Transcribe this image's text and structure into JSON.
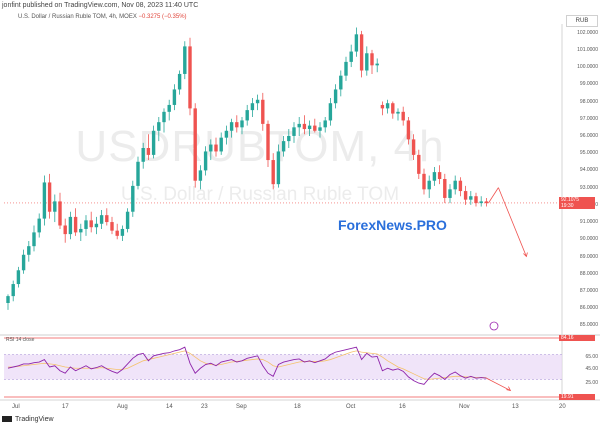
{
  "header": {
    "publisher_text": "jonfint published on TradingView.com, Nov 08, 2023 11:40 UTC"
  },
  "symbol_title": {
    "text": "U.S. Dollar / Russian Ruble TOM, 4h, MOEX",
    "change": "−0.3275 (−0.35%)"
  },
  "watermark": {
    "symbol": "USDRUBTOM, 4h",
    "name": "U.S. Dollar / Russian Ruble TOM"
  },
  "brand": "ForexNews.PRO",
  "footer": {
    "logo_text": "TradingView"
  },
  "currency_label": "RUB",
  "price_badge": {
    "price": "92.1075",
    "timer": "19:30",
    "color": "#ef5350"
  },
  "rsi": {
    "label": "RSI 14 close",
    "upper_badge": "84.16",
    "lower_badge": "19.91",
    "ticks": [
      "65.00",
      "45.00",
      "25.00"
    ]
  },
  "colors": {
    "up": "#26a69a",
    "down": "#ef5350",
    "rsi_line": "#8e24aa",
    "rsi_ma": "#f5c26b",
    "rsi_band": "#e9d8f7",
    "forecast": "#ef5350",
    "brand": "#2a6fdb"
  },
  "chart_data": {
    "type": "candlestick",
    "title": "U.S. Dollar / Russian Ruble TOM, 4h, MOEX",
    "y_ticks": [
      "102.0000",
      "101.0000",
      "100.0000",
      "99.0000",
      "98.0000",
      "97.0000",
      "96.0000",
      "95.0000",
      "94.0000",
      "93.0000",
      "92.0000",
      "91.0000",
      "90.0000",
      "89.0000",
      "88.0000",
      "87.0000",
      "86.0000",
      "85.0000"
    ],
    "ylim": [
      84.5,
      102.5
    ],
    "x_ticks": [
      "Jul",
      "17",
      "Aug",
      "14",
      "23",
      "Sep",
      "18",
      "Oct",
      "16",
      "Nov",
      "13",
      "20"
    ],
    "current_price": 92.1075,
    "candles": [
      [
        86.3,
        86.8,
        85.9,
        86.7
      ],
      [
        86.7,
        87.6,
        86.4,
        87.4
      ],
      [
        87.4,
        88.4,
        87.2,
        88.2
      ],
      [
        88.2,
        89.4,
        88.0,
        89.1
      ],
      [
        89.1,
        89.9,
        88.7,
        89.6
      ],
      [
        89.6,
        90.8,
        89.3,
        90.4
      ],
      [
        90.4,
        91.5,
        90.1,
        91.2
      ],
      [
        91.2,
        93.7,
        90.8,
        93.3
      ],
      [
        93.3,
        93.8,
        91.2,
        91.6
      ],
      [
        91.6,
        92.6,
        91.0,
        92.2
      ],
      [
        92.2,
        92.7,
        90.6,
        90.8
      ],
      [
        90.8,
        91.2,
        89.8,
        90.3
      ],
      [
        90.3,
        91.6,
        90.0,
        91.3
      ],
      [
        91.3,
        91.8,
        90.2,
        90.4
      ],
      [
        90.4,
        90.9,
        89.9,
        90.6
      ],
      [
        90.6,
        91.4,
        90.2,
        91.1
      ],
      [
        91.1,
        91.6,
        90.4,
        90.7
      ],
      [
        90.7,
        91.3,
        90.3,
        90.9
      ],
      [
        90.9,
        91.7,
        90.6,
        91.4
      ],
      [
        91.4,
        91.8,
        90.8,
        91.0
      ],
      [
        91.0,
        91.3,
        90.3,
        90.5
      ],
      [
        90.5,
        90.9,
        90.0,
        90.2
      ],
      [
        90.2,
        90.8,
        89.9,
        90.6
      ],
      [
        90.6,
        91.8,
        90.4,
        91.6
      ],
      [
        91.6,
        93.4,
        91.3,
        93.1
      ],
      [
        93.1,
        94.8,
        92.9,
        94.5
      ],
      [
        94.5,
        95.6,
        94.1,
        95.3
      ],
      [
        95.3,
        96.1,
        94.6,
        94.9
      ],
      [
        94.9,
        96.6,
        94.7,
        96.3
      ],
      [
        96.3,
        97.1,
        95.7,
        96.8
      ],
      [
        96.8,
        97.6,
        96.2,
        97.4
      ],
      [
        97.4,
        98.1,
        96.9,
        97.8
      ],
      [
        97.8,
        99.0,
        97.5,
        98.7
      ],
      [
        98.7,
        99.8,
        98.4,
        99.6
      ],
      [
        99.6,
        101.5,
        99.3,
        101.2
      ],
      [
        101.2,
        101.7,
        97.2,
        97.6
      ],
      [
        97.6,
        97.9,
        93.0,
        93.4
      ],
      [
        93.4,
        94.3,
        92.9,
        94.0
      ],
      [
        94.0,
        95.4,
        93.7,
        95.1
      ],
      [
        95.1,
        95.8,
        94.6,
        95.5
      ],
      [
        95.5,
        95.9,
        94.8,
        95.1
      ],
      [
        95.1,
        96.2,
        94.9,
        95.9
      ],
      [
        95.9,
        96.6,
        95.5,
        96.3
      ],
      [
        96.3,
        97.0,
        95.9,
        96.8
      ],
      [
        96.8,
        97.2,
        96.2,
        96.5
      ],
      [
        96.5,
        97.1,
        96.1,
        96.9
      ],
      [
        96.9,
        97.8,
        96.6,
        97.5
      ],
      [
        97.5,
        98.2,
        97.1,
        97.9
      ],
      [
        97.9,
        98.4,
        97.5,
        98.1
      ],
      [
        98.1,
        98.5,
        96.3,
        96.7
      ],
      [
        96.7,
        96.9,
        94.2,
        94.6
      ],
      [
        94.6,
        95.0,
        92.9,
        93.2
      ],
      [
        93.2,
        95.5,
        93.0,
        95.1
      ],
      [
        95.1,
        96.0,
        94.8,
        95.7
      ],
      [
        95.7,
        96.4,
        95.3,
        96.0
      ],
      [
        96.0,
        96.8,
        95.6,
        96.5
      ],
      [
        96.5,
        97.1,
        96.0,
        96.7
      ],
      [
        96.7,
        97.2,
        96.1,
        96.4
      ],
      [
        96.4,
        96.9,
        96.0,
        96.6
      ],
      [
        96.6,
        97.0,
        96.2,
        96.3
      ],
      [
        96.3,
        96.8,
        95.9,
        96.5
      ],
      [
        96.5,
        97.1,
        96.2,
        96.9
      ],
      [
        96.9,
        98.2,
        96.6,
        97.9
      ],
      [
        97.9,
        99.0,
        97.6,
        98.7
      ],
      [
        98.7,
        99.8,
        98.3,
        99.5
      ],
      [
        99.5,
        100.6,
        99.2,
        100.3
      ],
      [
        100.3,
        101.3,
        100.0,
        100.9
      ],
      [
        100.9,
        102.3,
        100.6,
        101.9
      ],
      [
        101.9,
        102.1,
        99.4,
        99.8
      ],
      [
        99.8,
        101.2,
        99.5,
        100.8
      ],
      [
        100.8,
        101.0,
        99.6,
        100.1
      ],
      [
        100.1,
        100.5,
        99.7,
        100.2
      ],
      [
        97.8,
        98.0,
        97.2,
        97.6
      ],
      [
        97.6,
        98.1,
        97.3,
        97.9
      ],
      [
        97.9,
        98.0,
        97.0,
        97.3
      ],
      [
        97.3,
        97.6,
        96.9,
        97.4
      ],
      [
        97.4,
        97.7,
        96.6,
        96.9
      ],
      [
        96.9,
        97.1,
        95.5,
        95.8
      ],
      [
        95.8,
        96.1,
        94.6,
        94.9
      ],
      [
        94.9,
        95.2,
        93.5,
        93.8
      ],
      [
        93.8,
        94.1,
        92.6,
        92.9
      ],
      [
        92.9,
        93.7,
        92.4,
        93.4
      ],
      [
        93.4,
        94.2,
        93.1,
        93.9
      ],
      [
        93.9,
        94.3,
        93.2,
        93.5
      ],
      [
        93.5,
        93.8,
        92.1,
        92.4
      ],
      [
        92.4,
        93.2,
        92.1,
        92.9
      ],
      [
        92.9,
        93.7,
        92.6,
        93.4
      ],
      [
        93.4,
        93.6,
        92.5,
        92.8
      ],
      [
        92.8,
        93.1,
        92.0,
        92.3
      ],
      [
        92.3,
        92.8,
        92.0,
        92.5
      ],
      [
        92.5,
        92.7,
        91.9,
        92.1
      ],
      [
        92.1,
        92.5,
        91.9,
        92.2
      ],
      [
        92.2,
        92.4,
        91.9,
        92.1
      ]
    ],
    "forecast_path": [
      [
        93.0,
        0
      ],
      [
        89.0,
        1
      ]
    ],
    "rsi_values": [
      48,
      50,
      52,
      55,
      55,
      57,
      58,
      62,
      50,
      52,
      44,
      40,
      50,
      44,
      48,
      52,
      47,
      49,
      52,
      47,
      43,
      40,
      46,
      55,
      64,
      70,
      72,
      60,
      68,
      70,
      72,
      73,
      76,
      78,
      82,
      56,
      40,
      48,
      54,
      56,
      52,
      58,
      60,
      62,
      58,
      60,
      64,
      66,
      68,
      52,
      40,
      35,
      54,
      58,
      60,
      62,
      63,
      58,
      60,
      57,
      60,
      63,
      70,
      74,
      76,
      78,
      80,
      82,
      62,
      72,
      66,
      67,
      44,
      48,
      45,
      47,
      43,
      34,
      28,
      24,
      22,
      32,
      40,
      36,
      30,
      38,
      42,
      36,
      32,
      35,
      32,
      33,
      32
    ],
    "rsi_ma_values": [
      50,
      50,
      51,
      52,
      53,
      54,
      55,
      56,
      55,
      54,
      52,
      50,
      49,
      48,
      48,
      48,
      48,
      48,
      49,
      48,
      47,
      46,
      46,
      48,
      52,
      56,
      60,
      62,
      64,
      66,
      68,
      70,
      72,
      74,
      76,
      72,
      66,
      60,
      56,
      54,
      53,
      54,
      56,
      58,
      59,
      60,
      61,
      62,
      63,
      62,
      58,
      52,
      50,
      52,
      54,
      56,
      58,
      59,
      59,
      59,
      59,
      60,
      62,
      65,
      68,
      71,
      74,
      76,
      74,
      73,
      72,
      71,
      66,
      60,
      55,
      50,
      47,
      43,
      39,
      35,
      31,
      30,
      31,
      32,
      33,
      34,
      35,
      35,
      34,
      34,
      33,
      33,
      33
    ],
    "rsi_levels": {
      "upper": 70,
      "lower": 30
    }
  }
}
